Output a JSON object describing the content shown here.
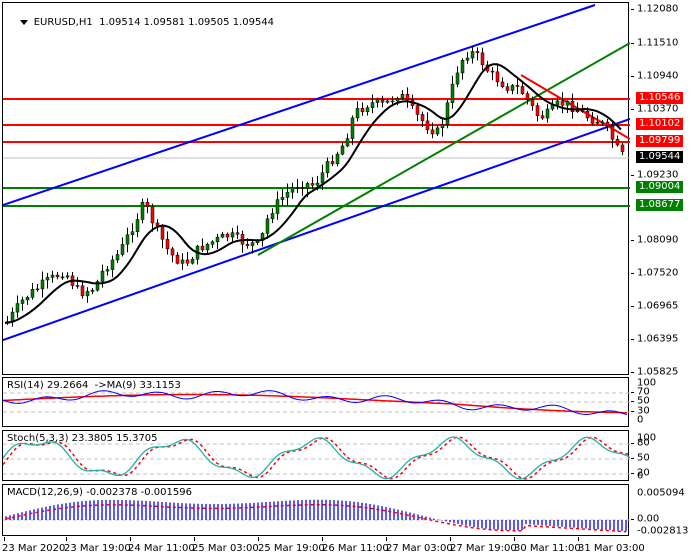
{
  "chart": {
    "symbol": "EURUSD,H1",
    "ohlc": "1.09514 1.09581 1.09505 1.09544",
    "open": "1.09514",
    "high": "1.09581",
    "low": "1.09505",
    "close": "1.09544"
  },
  "price_scale": {
    "ticks": [
      "1.12080",
      "1.11510",
      "1.10940",
      "1.10370",
      "1.09230",
      "1.08090",
      "1.07520",
      "1.06965",
      "1.06395",
      "1.05825"
    ],
    "tags": [
      {
        "value": "1.10546",
        "color": "#ff0000"
      },
      {
        "value": "1.10102",
        "color": "#ff0000"
      },
      {
        "value": "1.09799",
        "color": "#ff0000"
      },
      {
        "value": "1.09544",
        "color": "#000000"
      },
      {
        "value": "1.09004",
        "color": "#008000"
      },
      {
        "value": "1.08677",
        "color": "#008000"
      }
    ]
  },
  "indicators": {
    "rsi": {
      "label": "RSI(14) 29.2664  ->MA(9) 33.1153",
      "levels": [
        "100",
        "70",
        "50",
        "30",
        "0"
      ]
    },
    "stoch": {
      "label": "Stoch(5,3,3) 23.3805 15.3705",
      "levels": [
        "100",
        "80",
        "50",
        "20",
        "0"
      ]
    },
    "macd": {
      "label": "MACD(12,26,9) -0.002378 -0.001596",
      "levels": [
        "0.005094",
        "0.00",
        "-0.002813"
      ]
    }
  },
  "time_axis": {
    "labels": [
      "23 Mar 2020",
      "23 Mar 19:00",
      "24 Mar 11:00",
      "25 Mar 03:00",
      "25 Mar 19:00",
      "26 Mar 11:00",
      "27 Mar 03:00",
      "27 Mar 19:00",
      "30 Mar 11:00",
      "31 Mar 03:00"
    ]
  },
  "colors": {
    "bull_candle": "#008000",
    "bear_candle": "#ff0000",
    "channel": "#0000ff",
    "support": "#008000",
    "resistance": "#ff0000",
    "ma": "#000000",
    "rsi_line": "#0000ff",
    "rsi_ma": "#ff0000",
    "stoch_main": "#20b2aa",
    "stoch_signal": "#ff0000",
    "macd_hist": "#0000ff",
    "macd_signal": "#ff0000"
  }
}
